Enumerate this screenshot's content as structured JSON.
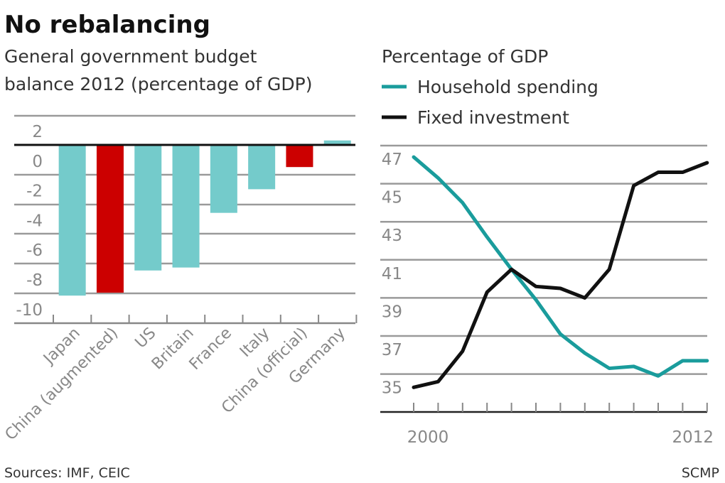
{
  "title": "No rebalancing",
  "footer": {
    "sources": "Sources: IMF, CEIC",
    "credit": "SCMP"
  },
  "colors": {
    "bar_default": "#74cbcb",
    "bar_china": "#cc0000",
    "household": "#1a9c9c",
    "investment": "#111111"
  },
  "chart_data": [
    {
      "type": "bar",
      "title": "General government budget balance 2012 (percentage of GDP)",
      "title_lines": [
        "General government budget",
        "balance 2012 (percentage of GDP)"
      ],
      "categories": [
        "Japan",
        "China (augmented)",
        "US",
        "Britain",
        "France",
        "Italy",
        "China (official)",
        "Germany"
      ],
      "values": [
        -10.2,
        -10.0,
        -8.5,
        -8.3,
        -4.6,
        -3.0,
        -1.5,
        0.3
      ],
      "highlight": [
        false,
        true,
        false,
        false,
        false,
        false,
        true,
        false
      ],
      "yticks": [
        "2",
        "0",
        "-2",
        "-4",
        "-6",
        "-8",
        "-10"
      ],
      "ylim": [
        -12,
        2
      ],
      "grid": true
    },
    {
      "type": "line",
      "title": "Percentage of GDP",
      "x": [
        2000,
        2001,
        2002,
        2003,
        2004,
        2005,
        2006,
        2007,
        2008,
        2009,
        2010,
        2011,
        2012
      ],
      "xticks": [
        "2000",
        "2012"
      ],
      "yticks": [
        "47",
        "45",
        "43",
        "41",
        "39",
        "37",
        "35"
      ],
      "ylim": [
        34,
        48
      ],
      "grid": true,
      "legend": "top-left",
      "series": [
        {
          "name": "Household spending",
          "values": [
            47.4,
            46.3,
            45.0,
            43.2,
            41.5,
            39.9,
            38.1,
            37.1,
            36.3,
            36.4,
            35.9,
            36.7,
            36.7
          ]
        },
        {
          "name": "Fixed investment",
          "values": [
            35.3,
            35.6,
            37.2,
            40.3,
            41.5,
            40.6,
            40.5,
            40.0,
            41.5,
            45.9,
            46.6,
            46.6,
            47.1
          ]
        }
      ]
    }
  ]
}
